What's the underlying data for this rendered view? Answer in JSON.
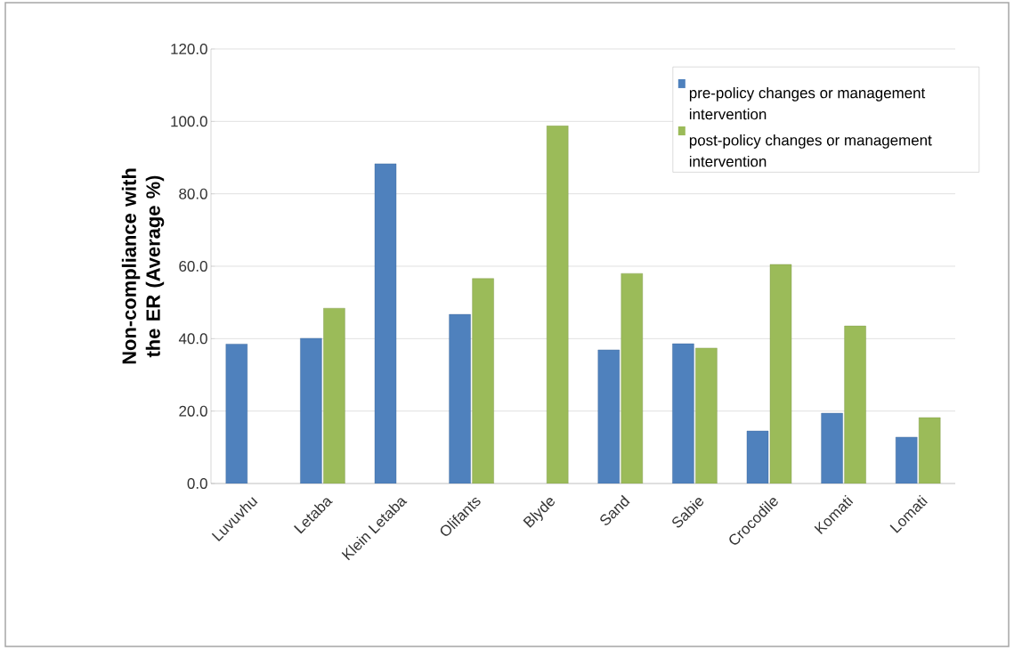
{
  "chart_data": {
    "type": "bar",
    "ylabel": "Non-compliance with the ER (Average %)",
    "categories": [
      "Luvuvhu",
      "Letaba",
      "Klein Letaba",
      "Olifants",
      "Blyde",
      "Sand",
      "Sabie",
      "Crocodile",
      "Komati",
      "Lomati"
    ],
    "series": [
      {
        "name": "pre-policy changes  or management intervention",
        "color": "#4f81bd",
        "values": [
          38.5,
          40.1,
          88.3,
          46.7,
          null,
          36.9,
          38.6,
          14.5,
          19.4,
          12.8
        ]
      },
      {
        "name": "post-policy changes or management intervention",
        "color": "#9bbb59",
        "values": [
          null,
          48.4,
          null,
          56.6,
          98.8,
          58.0,
          37.4,
          60.5,
          43.5,
          18.2
        ]
      }
    ],
    "ylim": [
      0,
      120
    ],
    "yticks": [
      {
        "value": 0,
        "label": "0.0"
      },
      {
        "value": 20,
        "label": "20.0"
      },
      {
        "value": 40,
        "label": "40.0"
      },
      {
        "value": 60,
        "label": "60.0"
      },
      {
        "value": 80,
        "label": "80.0"
      },
      {
        "value": 100,
        "label": "100.0"
      },
      {
        "value": 120,
        "label": "120.0"
      }
    ],
    "grid": "y",
    "legend": "top right"
  }
}
